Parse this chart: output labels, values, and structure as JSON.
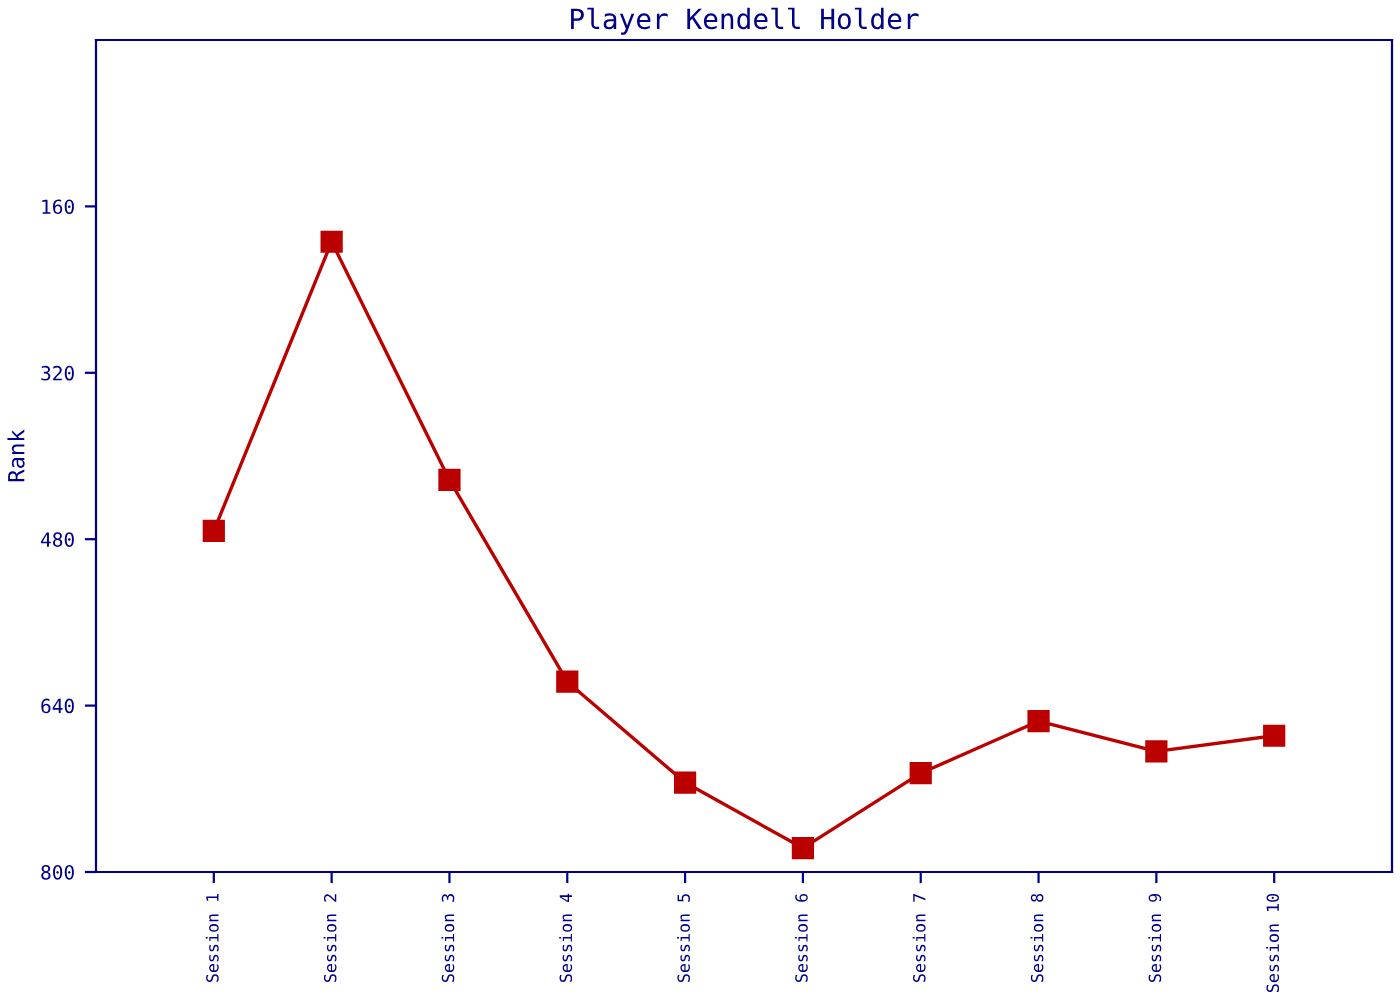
{
  "chart_data": {
    "type": "line",
    "title": "Player Kendell Holder",
    "ylabel": "Rank",
    "categories": [
      "Session 1",
      "Session 2",
      "Session 3",
      "Session 4",
      "Session 5",
      "Session 6",
      "Session 7",
      "Session 8",
      "Session 9",
      "Session 10"
    ],
    "series": [
      {
        "color": "#bb0000",
        "values": [
          472,
          194,
          423,
          617,
          714,
          777,
          705,
          655,
          684,
          669
        ]
      }
    ],
    "ylim": [
      800,
      0
    ],
    "yticks": [
      160,
      320,
      480,
      640,
      800
    ],
    "grid": false,
    "legend": false,
    "marker": "square",
    "line_style": "solid"
  }
}
